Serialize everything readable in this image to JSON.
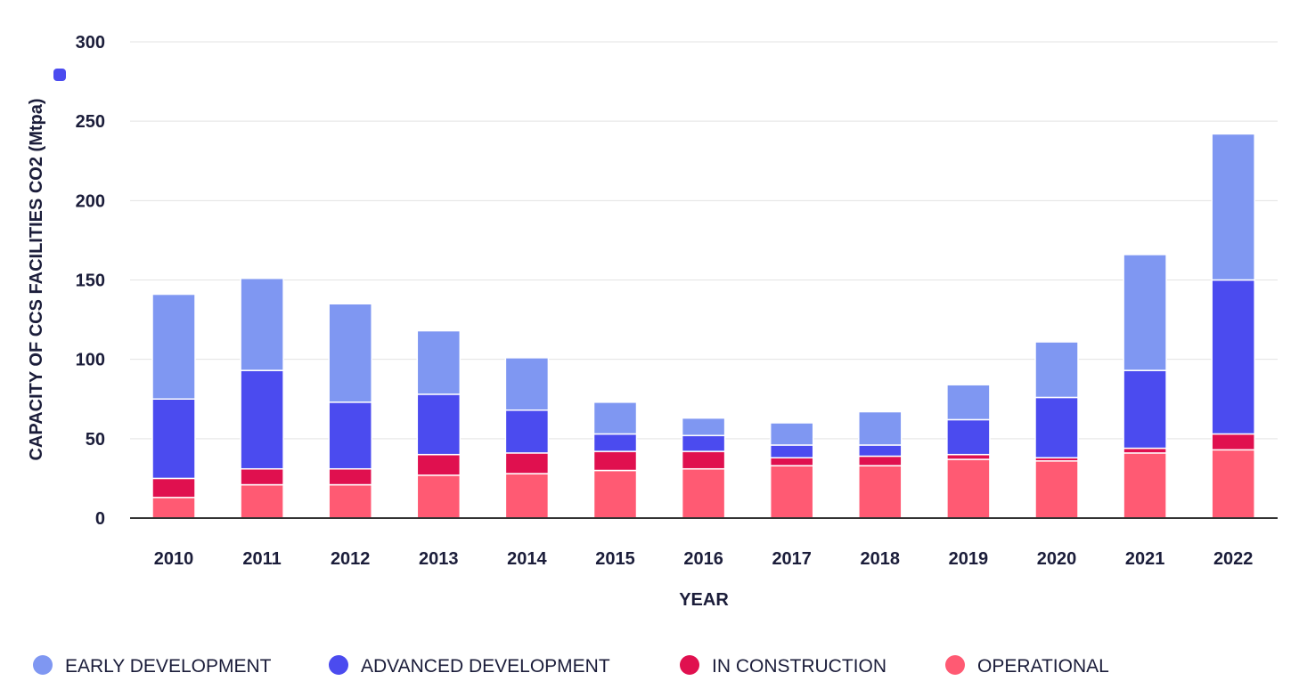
{
  "chart_data": {
    "type": "bar",
    "stacked": true,
    "title": "",
    "xlabel": "YEAR",
    "ylabel": "CAPACITY OF CCS FACILITIES CO2 (Mtpa)",
    "ylim": [
      0,
      300
    ],
    "yticks": [
      0,
      50,
      100,
      150,
      200,
      250,
      300
    ],
    "grid": true,
    "legend_position": "bottom-left",
    "categories": [
      "2010",
      "2011",
      "2012",
      "2013",
      "2014",
      "2015",
      "2016",
      "2017",
      "2018",
      "2019",
      "2020",
      "2021",
      "2022"
    ],
    "series": [
      {
        "name": "OPERATIONAL",
        "color": "#ff5a73",
        "values": [
          13,
          21,
          21,
          27,
          28,
          30,
          31,
          33,
          33,
          37,
          36,
          41,
          43
        ]
      },
      {
        "name": "IN CONSTRUCTION",
        "color": "#e0104f",
        "values": [
          12,
          10,
          10,
          13,
          13,
          12,
          11,
          5,
          6,
          3,
          2,
          3,
          10
        ]
      },
      {
        "name": "ADVANCED DEVELOPMENT",
        "color": "#4b4bef",
        "values": [
          50,
          62,
          42,
          38,
          27,
          11,
          10,
          8,
          7,
          22,
          38,
          49,
          97
        ]
      },
      {
        "name": "EARLY DEVELOPMENT",
        "color": "#7f97f2",
        "values": [
          66,
          58,
          62,
          40,
          33,
          20,
          11,
          14,
          21,
          22,
          35,
          73,
          92
        ]
      }
    ],
    "legend_order": [
      "EARLY DEVELOPMENT",
      "ADVANCED DEVELOPMENT",
      "IN CONSTRUCTION",
      "OPERATIONAL"
    ],
    "colors": {
      "grid": "#e3e3e3",
      "axis": "#333333",
      "text": "#1b1d3a",
      "segment_border": "#ffffff"
    }
  }
}
